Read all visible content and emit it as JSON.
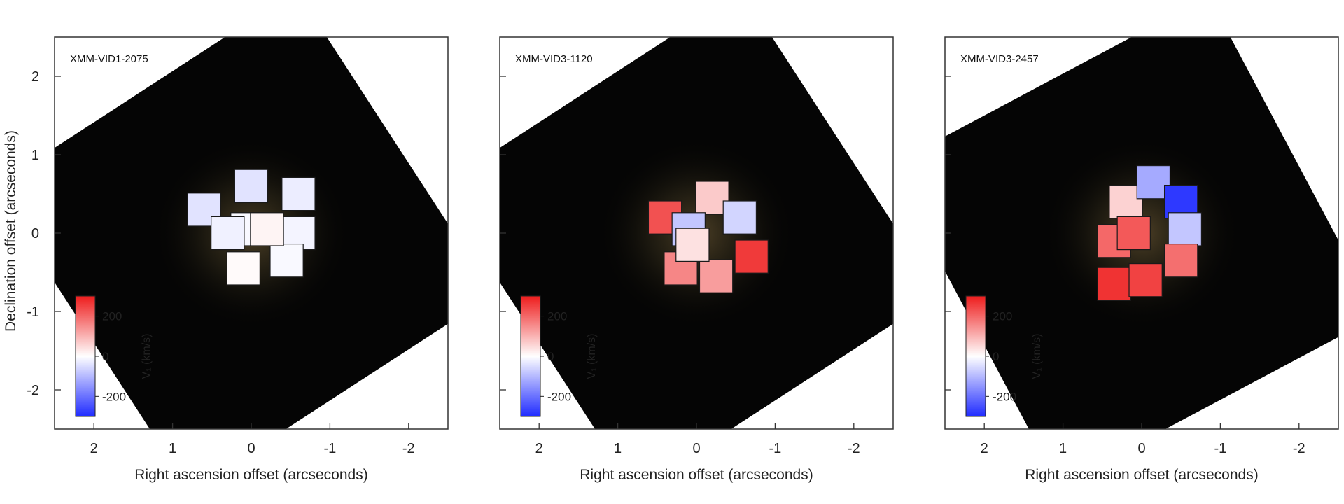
{
  "chart_data": {
    "type": "heatmap",
    "ylabel": "Declination offset (arcseconds)",
    "colorbar": {
      "label": "V₁ (km/s)",
      "ticks": [
        200,
        0,
        -200
      ],
      "tick_labels": [
        "200",
        "0",
        "-200"
      ],
      "range": [
        -300,
        300
      ],
      "colors": [
        "#1f2bff",
        "#ffffff",
        "#ee1c1c"
      ]
    },
    "panels": [
      {
        "name": "XMM-VID1-2075",
        "xlabel": "Right ascension offset (arcseconds)",
        "xlim": [
          2.5,
          -2.5
        ],
        "ylim": [
          -2.5,
          2.5
        ],
        "x_ticks": [
          2,
          1,
          0,
          -1,
          -2
        ],
        "x_tick_labels": [
          "2",
          "1",
          "0",
          "-1",
          "-2"
        ],
        "y_ticks": [
          2,
          1,
          0,
          -1,
          -2
        ],
        "y_tick_labels": [
          "2",
          "1",
          "0",
          "-1",
          "-2"
        ],
        "cells": [
          {
            "x": 0.6,
            "y": 0.3,
            "v": -40
          },
          {
            "x": 0.0,
            "y": 0.6,
            "v": -40
          },
          {
            "x": -0.6,
            "y": 0.5,
            "v": -25
          },
          {
            "x": -0.6,
            "y": 0.0,
            "v": -15
          },
          {
            "x": -0.45,
            "y": -0.35,
            "v": -8
          },
          {
            "x": 0.1,
            "y": -0.45,
            "v": 6
          },
          {
            "x": 0.05,
            "y": 0.05,
            "v": -10
          },
          {
            "x": -0.2,
            "y": 0.05,
            "v": 15
          },
          {
            "x": 0.3,
            "y": 0.0,
            "v": -20
          }
        ]
      },
      {
        "name": "XMM-VID3-1120",
        "xlabel": "Right ascension offset (arcseconds)",
        "xlim": [
          2.5,
          -2.5
        ],
        "ylim": [
          -2.5,
          2.5
        ],
        "x_ticks": [
          2,
          1,
          0,
          -1,
          -2
        ],
        "x_tick_labels": [
          "2",
          "1",
          "0",
          "-1",
          "-2"
        ],
        "y_ticks": [
          2,
          1,
          0,
          -1,
          -2
        ],
        "y_tick_labels": [
          "2",
          "1",
          "0",
          "-1",
          "-2"
        ],
        "cells": [
          {
            "x": 0.4,
            "y": 0.2,
            "v": 230
          },
          {
            "x": -0.2,
            "y": 0.45,
            "v": 70
          },
          {
            "x": -0.55,
            "y": 0.2,
            "v": -60
          },
          {
            "x": -0.7,
            "y": -0.3,
            "v": 260
          },
          {
            "x": -0.25,
            "y": -0.55,
            "v": 130
          },
          {
            "x": 0.2,
            "y": -0.45,
            "v": 160
          },
          {
            "x": 0.1,
            "y": 0.05,
            "v": -80
          },
          {
            "x": 0.05,
            "y": -0.15,
            "v": 40
          }
        ]
      },
      {
        "name": "XMM-VID3-2457",
        "xlabel": "Right ascension offset (arcseconds)",
        "xlim": [
          2.5,
          -2.5
        ],
        "ylim": [
          -2.5,
          2.5
        ],
        "x_ticks": [
          2,
          1,
          0,
          -1,
          -2
        ],
        "x_tick_labels": [
          "2",
          "1",
          "0",
          "-1",
          "-2"
        ],
        "y_ticks": [
          2,
          1,
          0,
          -1,
          -2
        ],
        "y_tick_labels": [
          "2",
          "1",
          "0",
          "-1",
          "-2"
        ],
        "cells": [
          {
            "x": 0.2,
            "y": 0.4,
            "v": 60
          },
          {
            "x": -0.15,
            "y": 0.65,
            "v": -120
          },
          {
            "x": -0.5,
            "y": 0.4,
            "v": -280
          },
          {
            "x": -0.55,
            "y": 0.05,
            "v": -80
          },
          {
            "x": -0.5,
            "y": -0.35,
            "v": 190
          },
          {
            "x": 0.35,
            "y": -0.1,
            "v": 200
          },
          {
            "x": 0.35,
            "y": -0.65,
            "v": 270
          },
          {
            "x": -0.05,
            "y": -0.6,
            "v": 250
          },
          {
            "x": 0.1,
            "y": 0.0,
            "v": 220
          }
        ]
      }
    ]
  }
}
